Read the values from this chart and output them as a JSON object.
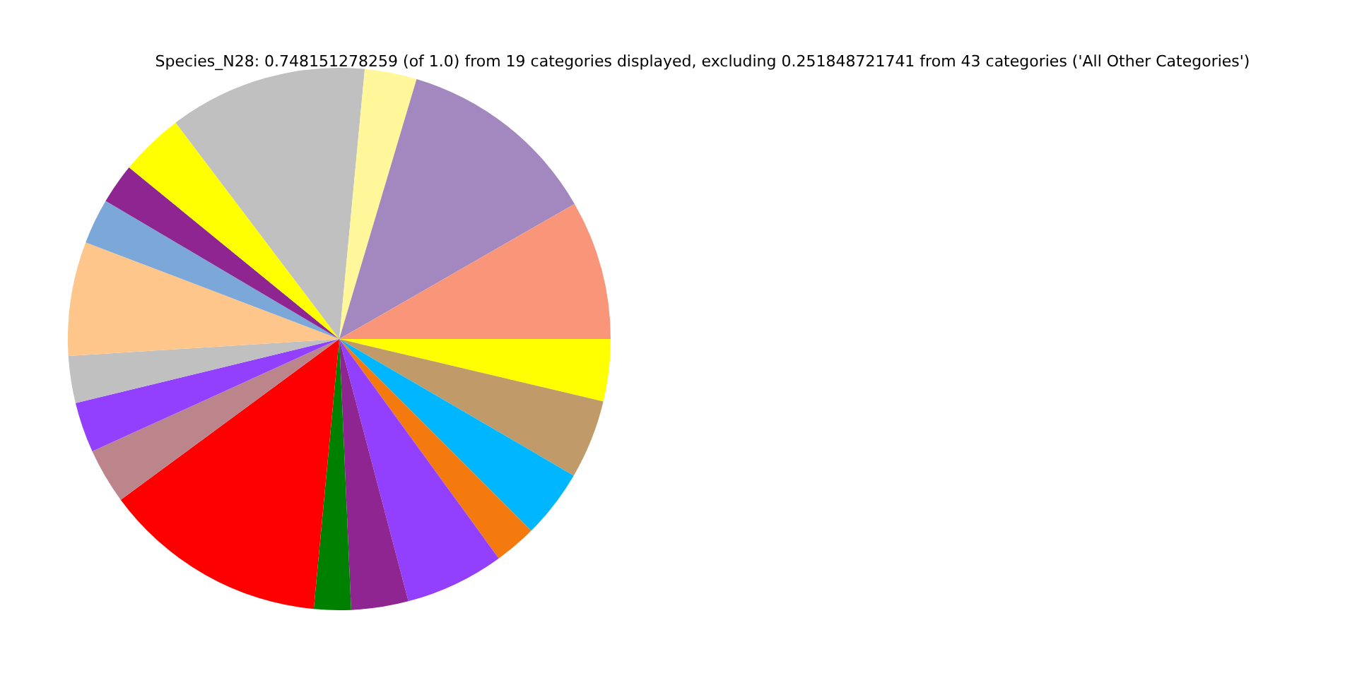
{
  "chart_data": {
    "type": "pie",
    "title": "Species_N28: 0.748151278259 (of 1.0) from 19 categories displayed, excluding 0.251848721741 from 43 categories ('All Other Categories')",
    "categories": [
      null,
      null,
      null,
      null,
      null,
      null,
      null,
      null,
      null,
      null,
      null,
      null,
      null,
      null,
      null,
      null,
      null,
      null,
      null
    ],
    "values": [
      8.3,
      12.1,
      3.1,
      11.8,
      3.8,
      2.4,
      2.7,
      6.8,
      2.8,
      3.0,
      3.3,
      13.4,
      2.2,
      3.4,
      5.9,
      2.5,
      4.1,
      4.7,
      3.7
    ],
    "colors": [
      "#f9967a",
      "#a388bf",
      "#fff79a",
      "#c0c0c0",
      "#ffff00",
      "#8e2590",
      "#7ba8d9",
      "#fec68a",
      "#c0c0c0",
      "#9240fd",
      "#bc858b",
      "#ff0000",
      "#008000",
      "#8e2590",
      "#9240fd",
      "#f47a0f",
      "#00b7ff",
      "#c19a6a",
      "#ffff00"
    ]
  }
}
